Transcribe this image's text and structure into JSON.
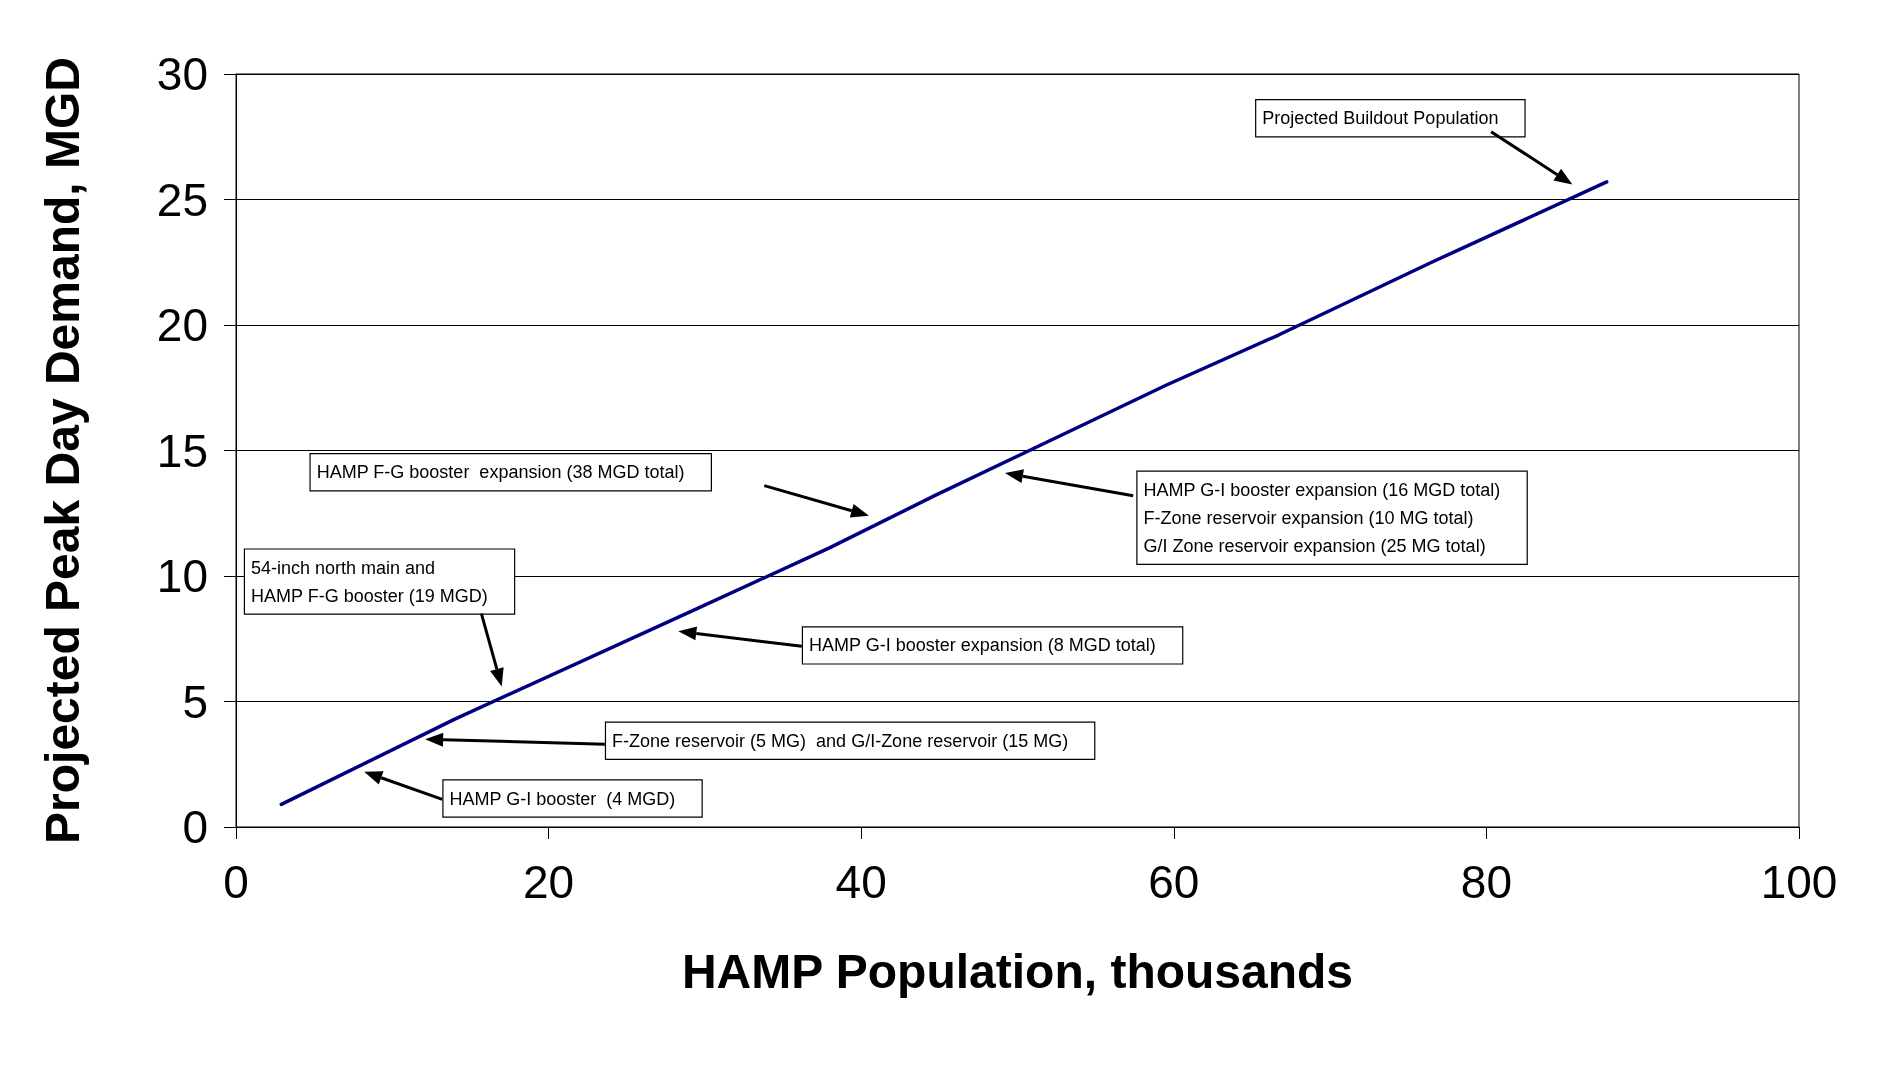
{
  "chart_data": {
    "type": "line",
    "xlabel": "HAMP Population, thousands",
    "ylabel": "Projected Peak Day Demand, MGD",
    "series": [
      {
        "color": "#000080",
        "x": [
          2.9,
          14,
          28.8,
          37.9,
          44.7,
          59.5,
          66.7,
          76.5,
          87.7
        ],
        "values": [
          0.9,
          4.3,
          8.5,
          11.1,
          13.2,
          17.6,
          19.6,
          22.5,
          25.7
        ]
      }
    ],
    "xlim": [
      0,
      100
    ],
    "xticks": [
      0,
      20,
      40,
      60,
      80,
      100
    ],
    "ylim": [
      0,
      30
    ],
    "yticks": [
      0,
      5,
      10,
      15,
      20,
      25,
      30
    ],
    "grid": "y",
    "marker": "none",
    "line_style": "solid",
    "annotations": [
      "Projected Buildout Population",
      "HAMP F-G booster  expansion (38 MGD total)",
      "HAMP G-I booster expansion (16 MGD total)\nF-Zone reservoir expansion (10 MG total)\nG/I Zone reservoir expansion (25 MG total)",
      "54-inch north main and\nHAMP F-G booster (19 MGD)",
      "HAMP G-I booster expansion (8 MGD total)",
      "F-Zone reservoir (5 MG)  and G/I-Zone reservoir (15 MG)",
      "HAMP G-I booster  (4 MGD)"
    ]
  }
}
